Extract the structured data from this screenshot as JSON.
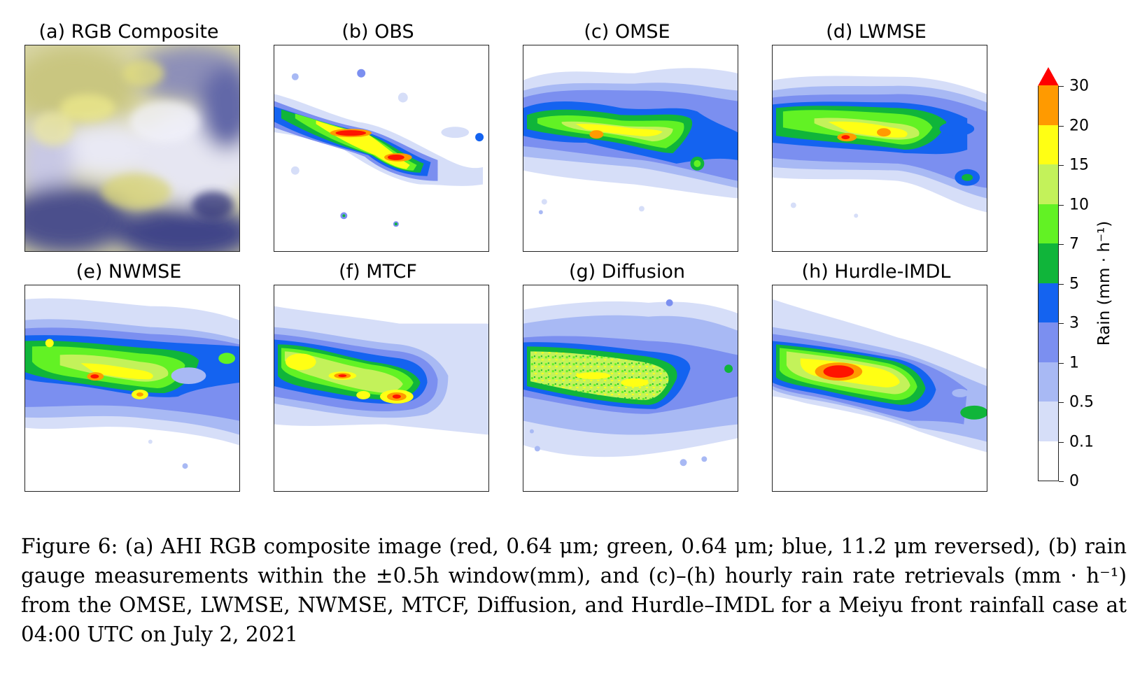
{
  "panels": [
    {
      "title": "(a) RGB Composite",
      "kind": "rgb"
    },
    {
      "title": "(b) OBS",
      "kind": "obs"
    },
    {
      "title": "(c) OMSE",
      "kind": "smooth"
    },
    {
      "title": "(d) LWMSE",
      "kind": "smooth2"
    },
    {
      "title": "(e) NWMSE",
      "kind": "smooth3"
    },
    {
      "title": "(f) MTCF",
      "kind": "smooth4"
    },
    {
      "title": "(g) Diffusion",
      "kind": "noisy"
    },
    {
      "title": "(h) Hurdle-IMDL",
      "kind": "smooth5"
    }
  ],
  "colorbar": {
    "label": "Rain (mm · h⁻¹)",
    "ticks": [
      "0",
      "0.1",
      "0.5",
      "1",
      "3",
      "5",
      "7",
      "10",
      "15",
      "20",
      "30"
    ],
    "colors": [
      "#ffffff",
      "#d6def8",
      "#a8b9f4",
      "#7b8ff0",
      "#1463f0",
      "#10b53a",
      "#62f224",
      "#c3f25a",
      "#ffff14",
      "#ff9a00",
      "#ff1400"
    ],
    "extend_color": "#ff0000"
  },
  "caption": "Figure 6: (a) AHI RGB composite image (red, 0.64 μm; green, 0.64 μm; blue, 11.2 μm reversed), (b) rain gauge measurements within the ±0.5h window(mm), and (c)–(h) hourly rain rate retrievals (mm · h⁻¹) from the OMSE, LWMSE, NWMSE, MTCF, Diffusion, and Hurdle–IMDL for a Meiyu front rainfall case at 04:00 UTC on July 2, 2021"
}
